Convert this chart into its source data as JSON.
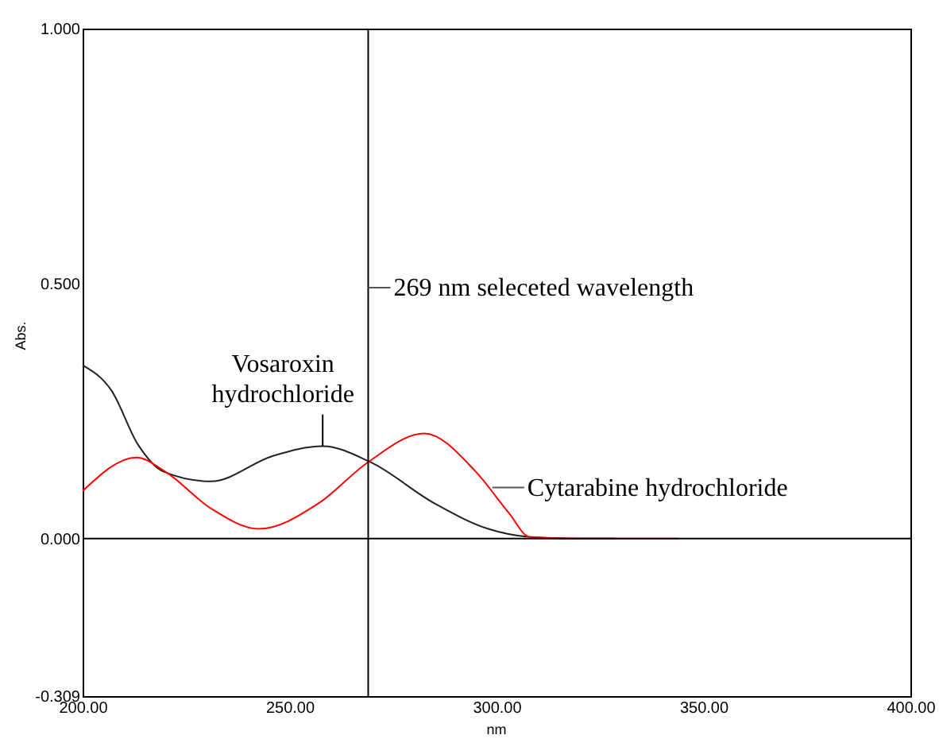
{
  "chart_data": {
    "type": "line",
    "xlabel": "nm",
    "ylabel": "Abs.",
    "xlim": [
      200,
      400
    ],
    "ylim": [
      -0.309,
      1.0
    ],
    "xticks": [
      {
        "value": 200,
        "label": "200.00"
      },
      {
        "value": 250,
        "label": "250.00"
      },
      {
        "value": 300,
        "label": "300.00"
      },
      {
        "value": 350,
        "label": "350.00"
      },
      {
        "value": 400,
        "label": "400.00"
      }
    ],
    "yticks": [
      {
        "value": -0.309,
        "label": "-0.309"
      },
      {
        "value": 0,
        "label": "0.000"
      },
      {
        "value": 0.5,
        "label": "0.500"
      },
      {
        "value": 1.0,
        "label": "1.000"
      }
    ],
    "grid": false,
    "marker": "none",
    "line_style": "solid",
    "series": [
      {
        "color": "#222222",
        "x": [
          200,
          207,
          213.4,
          219.6,
          231,
          246,
          258,
          269.5,
          285,
          298,
          308,
          318,
          328.6
        ],
        "values": [
          0.34,
          0.29,
          0.184,
          0.131,
          0.112,
          0.162,
          0.181,
          0.15,
          0.069,
          0.019,
          0.003,
          0.0,
          0.0
        ]
      },
      {
        "color": "#ff0000",
        "x": [
          200,
          213,
          220,
          231,
          242.6,
          257,
          269,
          282.5,
          295,
          303,
          308,
          320,
          344
        ],
        "values": [
          0.093,
          0.159,
          0.131,
          0.059,
          0.019,
          0.069,
          0.15,
          0.206,
          0.131,
          0.05,
          0.003,
          0.0,
          0.0
        ]
      }
    ],
    "ref_lines": [
      {
        "axis": "x",
        "value": 269,
        "label": "269 nm seleceted wavelength",
        "color": "#000000"
      },
      {
        "axis": "y",
        "value": 0,
        "color": "#000000"
      }
    ],
    "annotations": [
      {
        "text": "Vosaroxin\nhydrochloride",
        "x": 258,
        "y": 0.181
      },
      {
        "text": "Cytarabine hydrochloride",
        "x": 299,
        "y": 0.1
      }
    ]
  }
}
